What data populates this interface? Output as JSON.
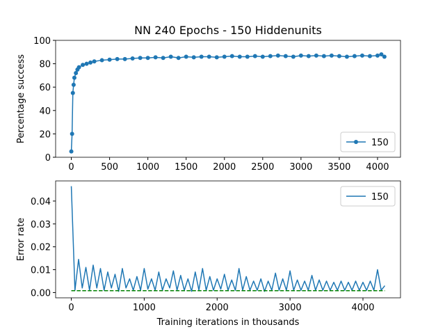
{
  "chart_data": [
    {
      "type": "line",
      "title": "NN 240 Epochs - 150 Hiddenunits",
      "y_label": "Percentage success",
      "x": [
        0,
        10,
        20,
        30,
        40,
        60,
        80,
        100,
        150,
        200,
        250,
        300,
        400,
        500,
        600,
        700,
        800,
        900,
        1000,
        1100,
        1200,
        1300,
        1400,
        1500,
        1600,
        1700,
        1800,
        1900,
        2000,
        2100,
        2200,
        2300,
        2400,
        2500,
        2600,
        2700,
        2800,
        2900,
        3000,
        3100,
        3200,
        3300,
        3400,
        3500,
        3600,
        3700,
        3800,
        3900,
        4000,
        4050,
        4090
      ],
      "series": [
        {
          "name": "150",
          "color": "#1f77b4",
          "marker": true,
          "values": [
            5,
            20,
            55,
            62,
            68,
            72,
            75,
            77,
            79,
            80,
            81,
            82,
            83,
            83.5,
            84,
            84,
            84.5,
            85,
            85,
            85.5,
            85,
            86,
            85,
            86,
            85.5,
            86,
            86,
            85.5,
            86,
            86.5,
            86,
            86,
            86.5,
            86,
            86.5,
            87,
            86.5,
            86,
            87,
            86.5,
            87,
            86.5,
            87,
            86.5,
            86,
            86.5,
            87,
            86.5,
            87,
            88,
            86
          ]
        }
      ],
      "xlim": [
        -205,
        4300
      ],
      "xticks": [
        0,
        500,
        1000,
        1500,
        2000,
        2500,
        3000,
        3500,
        4000
      ],
      "ylim": [
        0,
        100
      ],
      "yticks": [
        0,
        20,
        40,
        60,
        80,
        100
      ],
      "legend": "lower right"
    },
    {
      "type": "line",
      "x_label": "Training iterations in thousands",
      "y_label": "Error rate",
      "x": [
        0,
        50,
        100,
        150,
        200,
        250,
        300,
        350,
        400,
        450,
        500,
        550,
        600,
        650,
        700,
        750,
        800,
        850,
        900,
        950,
        1000,
        1050,
        1100,
        1150,
        1200,
        1250,
        1300,
        1350,
        1400,
        1450,
        1500,
        1550,
        1600,
        1650,
        1700,
        1750,
        1800,
        1850,
        1900,
        1950,
        2000,
        2050,
        2100,
        2150,
        2200,
        2250,
        2300,
        2350,
        2400,
        2450,
        2500,
        2550,
        2600,
        2650,
        2700,
        2750,
        2800,
        2850,
        2900,
        2950,
        3000,
        3050,
        3100,
        3150,
        3200,
        3250,
        3300,
        3350,
        3400,
        3450,
        3500,
        3550,
        3600,
        3650,
        3700,
        3750,
        3800,
        3850,
        3900,
        3950,
        4000,
        4050,
        4100,
        4150,
        4200,
        4250,
        4300
      ],
      "series": [
        {
          "name": "150",
          "color": "#1f77b4",
          "values": [
            0.0465,
            0.001,
            0.0145,
            0.002,
            0.011,
            0.001,
            0.012,
            0.002,
            0.0105,
            0.001,
            0.009,
            0.002,
            0.008,
            0.0005,
            0.0105,
            0.002,
            0.006,
            0.001,
            0.007,
            0.001,
            0.0105,
            0.0015,
            0.006,
            0.001,
            0.009,
            0.001,
            0.006,
            0.002,
            0.0095,
            0.001,
            0.0075,
            0.001,
            0.006,
            0.0005,
            0.009,
            0.001,
            0.0105,
            0.001,
            0.007,
            0.001,
            0.006,
            0.0015,
            0.008,
            0.001,
            0.0055,
            0.001,
            0.0105,
            0.001,
            0.007,
            0.001,
            0.005,
            0.001,
            0.006,
            0.0005,
            0.005,
            0.001,
            0.0085,
            0.001,
            0.006,
            0.001,
            0.0095,
            0.001,
            0.0055,
            0.001,
            0.005,
            0.001,
            0.0075,
            0.001,
            0.0055,
            0.001,
            0.005,
            0.001,
            0.0045,
            0.001,
            0.005,
            0.001,
            0.0045,
            0.001,
            0.005,
            0.001,
            0.0045,
            0.001,
            0.005,
            0.001,
            0.01,
            0.001,
            0.003
          ]
        }
      ],
      "hline": {
        "value": 0.0008,
        "color": "#008000",
        "linestyle": "dashed"
      },
      "xlim": [
        -215,
        4515
      ],
      "xticks": [
        0,
        1000,
        2000,
        3000,
        4000
      ],
      "ylim": [
        -0.0023,
        0.0488
      ],
      "yticks": [
        {
          "value": 0,
          "label": "0.00"
        },
        {
          "value": 0.01,
          "label": "0.01"
        },
        {
          "value": 0.02,
          "label": "0.02"
        },
        {
          "value": 0.03,
          "label": "0.03"
        },
        {
          "value": 0.04,
          "label": "0.04"
        }
      ],
      "legend": "upper right"
    }
  ]
}
